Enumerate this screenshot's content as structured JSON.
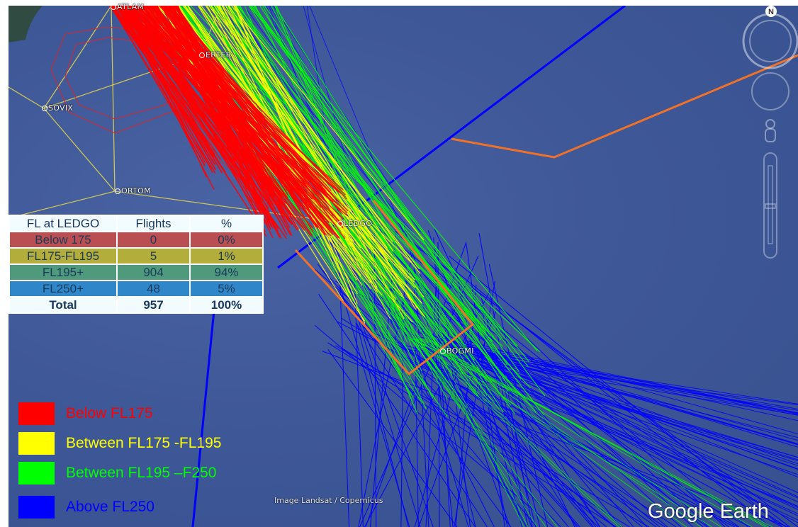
{
  "map": {
    "waypoints": [
      {
        "id": "atlam",
        "label": "ATLAM"
      },
      {
        "id": "erter",
        "label": "ERTER"
      },
      {
        "id": "sovix",
        "label": "SOVIX"
      },
      {
        "id": "ortom",
        "label": "ORTOM"
      },
      {
        "id": "ledgo",
        "label": "LEDGO"
      },
      {
        "id": "bogmi",
        "label": "BOGMI"
      }
    ],
    "imagery_credit": "Image Landsat / Copernicus",
    "brand": "Google Earth",
    "compass_label": "N",
    "colors": {
      "below_fl175": "#ff0000",
      "fl175_fl195": "#ffff00",
      "fl195_fl250": "#00ff00",
      "above_fl250": "#0000ff",
      "boundary": "#f07228",
      "airway": "#e8d84a"
    }
  },
  "stats_table": {
    "headers": [
      "FL at LEDGO",
      "Flights",
      "%"
    ],
    "rows": [
      {
        "band": "Below 175",
        "flights": "0",
        "pct": "0%",
        "color": "#b94f52"
      },
      {
        "band": "FL175-FL195",
        "flights": "5",
        "pct": "1%",
        "color": "#b3ad3c"
      },
      {
        "band": "FL195+",
        "flights": "904",
        "pct": "94%",
        "color": "#4f9a7d"
      },
      {
        "band": "FL250+",
        "flights": "48",
        "pct": "5%",
        "color": "#2f86c8"
      }
    ],
    "total": {
      "band": "Total",
      "flights": "957",
      "pct": "100%"
    }
  },
  "legend": [
    {
      "label": "Below FL175",
      "color": "#ff0000"
    },
    {
      "label": "Between FL175 -FL195",
      "color": "#ffff00"
    },
    {
      "label": "Between FL195 –F250",
      "color": "#00ff00"
    },
    {
      "label": "Above FL250",
      "color": "#0000ff"
    }
  ]
}
